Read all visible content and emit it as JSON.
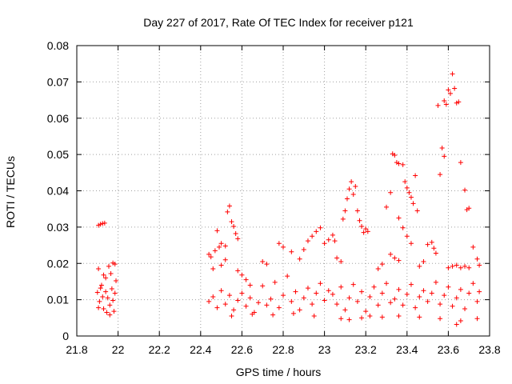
{
  "chart_data": {
    "type": "scatter",
    "title": "Day 227 of 2017, Rate Of TEC Index for receiver p121",
    "xlabel": "GPS time / hours",
    "ylabel": "ROTI / TECUs",
    "xlim": [
      21.8,
      23.8
    ],
    "ylim": [
      0,
      0.08
    ],
    "xticks": [
      21.8,
      22.0,
      22.2,
      22.4,
      22.6,
      22.8,
      23.0,
      23.2,
      23.4,
      23.6,
      23.8
    ],
    "xtick_labels": [
      "21.8",
      "22",
      "22.2",
      "22.4",
      "22.6",
      "22.8",
      "23",
      "23.2",
      "23.4",
      "23.6",
      "23.8"
    ],
    "yticks": [
      0,
      0.01,
      0.02,
      0.03,
      0.04,
      0.05,
      0.06,
      0.07,
      0.08
    ],
    "ytick_labels": [
      "0",
      "0.01",
      "0.02",
      "0.03",
      "0.04",
      "0.05",
      "0.06",
      "0.07",
      "0.08"
    ],
    "grid": true,
    "marker": "+",
    "series": [
      {
        "color": "#ff0000",
        "points": [
          [
            21.905,
            0.0305
          ],
          [
            21.915,
            0.0308
          ],
          [
            21.925,
            0.031
          ],
          [
            21.935,
            0.0311
          ],
          [
            21.905,
            0.0185
          ],
          [
            21.955,
            0.0192
          ],
          [
            21.975,
            0.0201
          ],
          [
            21.985,
            0.0198
          ],
          [
            21.9,
            0.012
          ],
          [
            21.91,
            0.0095
          ],
          [
            21.92,
            0.014
          ],
          [
            21.93,
            0.0075
          ],
          [
            21.94,
            0.016
          ],
          [
            21.95,
            0.0105
          ],
          [
            21.96,
            0.0085
          ],
          [
            21.97,
            0.013
          ],
          [
            21.98,
            0.0068
          ],
          [
            21.99,
            0.0152
          ],
          [
            21.905,
            0.0078
          ],
          [
            21.915,
            0.0132
          ],
          [
            21.925,
            0.0108
          ],
          [
            21.945,
            0.0065
          ],
          [
            21.965,
            0.0172
          ],
          [
            21.975,
            0.0098
          ],
          [
            21.985,
            0.0118
          ],
          [
            21.93,
            0.0168
          ],
          [
            21.96,
            0.0058
          ],
          [
            21.94,
            0.0122
          ],
          [
            22.44,
            0.0225
          ],
          [
            22.45,
            0.0218
          ],
          [
            22.47,
            0.0235
          ],
          [
            22.48,
            0.029
          ],
          [
            22.5,
            0.0255
          ],
          [
            22.52,
            0.0248
          ],
          [
            22.53,
            0.0342
          ],
          [
            22.54,
            0.0358
          ],
          [
            22.55,
            0.0315
          ],
          [
            22.56,
            0.0302
          ],
          [
            22.57,
            0.0282
          ],
          [
            22.58,
            0.0268
          ],
          [
            22.49,
            0.0245
          ],
          [
            22.5,
            0.0195
          ],
          [
            22.52,
            0.021
          ],
          [
            22.46,
            0.0185
          ],
          [
            22.58,
            0.018
          ],
          [
            22.6,
            0.0168
          ],
          [
            22.62,
            0.0155
          ],
          [
            22.64,
            0.014
          ],
          [
            22.44,
            0.0095
          ],
          [
            22.46,
            0.0108
          ],
          [
            22.48,
            0.0078
          ],
          [
            22.5,
            0.0125
          ],
          [
            22.52,
            0.0088
          ],
          [
            22.54,
            0.0112
          ],
          [
            22.56,
            0.0072
          ],
          [
            22.58,
            0.0098
          ],
          [
            22.6,
            0.0118
          ],
          [
            22.62,
            0.0082
          ],
          [
            22.64,
            0.0105
          ],
          [
            22.66,
            0.0065
          ],
          [
            22.68,
            0.0092
          ],
          [
            22.7,
            0.0138
          ],
          [
            22.72,
            0.0085
          ],
          [
            22.74,
            0.0102
          ],
          [
            22.76,
            0.0148
          ],
          [
            22.78,
            0.0078
          ],
          [
            22.8,
            0.0112
          ],
          [
            22.82,
            0.0165
          ],
          [
            22.84,
            0.0095
          ],
          [
            22.86,
            0.0122
          ],
          [
            22.88,
            0.0072
          ],
          [
            22.9,
            0.0105
          ],
          [
            22.92,
            0.0132
          ],
          [
            22.94,
            0.0088
          ],
          [
            22.96,
            0.0118
          ],
          [
            22.98,
            0.0145
          ],
          [
            23.0,
            0.0098
          ],
          [
            23.02,
            0.0125
          ],
          [
            22.55,
            0.0055
          ],
          [
            22.65,
            0.006
          ],
          [
            22.75,
            0.0058
          ],
          [
            22.85,
            0.0062
          ],
          [
            22.95,
            0.0055
          ],
          [
            22.7,
            0.0205
          ],
          [
            22.72,
            0.0198
          ],
          [
            22.78,
            0.0255
          ],
          [
            22.8,
            0.0245
          ],
          [
            22.84,
            0.0232
          ],
          [
            22.88,
            0.0212
          ],
          [
            22.9,
            0.0238
          ],
          [
            22.92,
            0.0262
          ],
          [
            22.94,
            0.0275
          ],
          [
            22.96,
            0.0288
          ],
          [
            22.98,
            0.0298
          ],
          [
            23.0,
            0.0255
          ],
          [
            23.02,
            0.0265
          ],
          [
            23.04,
            0.0278
          ],
          [
            23.05,
            0.0262
          ],
          [
            23.06,
            0.0215
          ],
          [
            23.08,
            0.0205
          ],
          [
            23.09,
            0.0322
          ],
          [
            23.1,
            0.0345
          ],
          [
            23.11,
            0.0378
          ],
          [
            23.12,
            0.0405
          ],
          [
            23.13,
            0.0425
          ],
          [
            23.14,
            0.039
          ],
          [
            23.15,
            0.0412
          ],
          [
            23.16,
            0.0345
          ],
          [
            23.17,
            0.0318
          ],
          [
            23.18,
            0.0302
          ],
          [
            23.19,
            0.0285
          ],
          [
            23.2,
            0.0295
          ],
          [
            23.21,
            0.0288
          ],
          [
            23.04,
            0.0115
          ],
          [
            23.06,
            0.0088
          ],
          [
            23.08,
            0.0135
          ],
          [
            23.1,
            0.0072
          ],
          [
            23.12,
            0.0105
          ],
          [
            23.14,
            0.0142
          ],
          [
            23.16,
            0.0095
          ],
          [
            23.18,
            0.0122
          ],
          [
            23.2,
            0.0068
          ],
          [
            23.22,
            0.0108
          ],
          [
            23.24,
            0.0135
          ],
          [
            23.26,
            0.0085
          ],
          [
            23.28,
            0.0118
          ],
          [
            23.3,
            0.0145
          ],
          [
            23.32,
            0.0092
          ],
          [
            23.08,
            0.0048
          ],
          [
            23.12,
            0.0045
          ],
          [
            23.18,
            0.005
          ],
          [
            23.22,
            0.0055
          ],
          [
            23.28,
            0.0052
          ],
          [
            23.3,
            0.0355
          ],
          [
            23.32,
            0.0395
          ],
          [
            23.33,
            0.0502
          ],
          [
            23.34,
            0.0498
          ],
          [
            23.35,
            0.0478
          ],
          [
            23.36,
            0.0475
          ],
          [
            23.38,
            0.0472
          ],
          [
            23.39,
            0.0425
          ],
          [
            23.4,
            0.0408
          ],
          [
            23.41,
            0.0395
          ],
          [
            23.42,
            0.0382
          ],
          [
            23.43,
            0.0365
          ],
          [
            23.44,
            0.0442
          ],
          [
            23.45,
            0.0345
          ],
          [
            23.36,
            0.0325
          ],
          [
            23.38,
            0.0298
          ],
          [
            23.4,
            0.0275
          ],
          [
            23.42,
            0.0255
          ],
          [
            23.32,
            0.0225
          ],
          [
            23.34,
            0.0215
          ],
          [
            23.26,
            0.0185
          ],
          [
            23.28,
            0.0198
          ],
          [
            23.36,
            0.0208
          ],
          [
            23.46,
            0.0192
          ],
          [
            23.48,
            0.0205
          ],
          [
            23.34,
            0.0102
          ],
          [
            23.36,
            0.0128
          ],
          [
            23.38,
            0.0085
          ],
          [
            23.4,
            0.0115
          ],
          [
            23.42,
            0.0142
          ],
          [
            23.44,
            0.0078
          ],
          [
            23.46,
            0.0108
          ],
          [
            23.48,
            0.0125
          ],
          [
            23.5,
            0.0095
          ],
          [
            23.52,
            0.0118
          ],
          [
            23.54,
            0.0148
          ],
          [
            23.56,
            0.0088
          ],
          [
            23.58,
            0.0112
          ],
          [
            23.6,
            0.0135
          ],
          [
            23.62,
            0.0082
          ],
          [
            23.64,
            0.0105
          ],
          [
            23.66,
            0.0128
          ],
          [
            23.68,
            0.0075
          ],
          [
            23.7,
            0.0118
          ],
          [
            23.72,
            0.0145
          ],
          [
            23.74,
            0.0095
          ],
          [
            23.75,
            0.0122
          ],
          [
            23.36,
            0.0055
          ],
          [
            23.46,
            0.0052
          ],
          [
            23.56,
            0.0048
          ],
          [
            23.64,
            0.0032
          ],
          [
            23.66,
            0.0042
          ],
          [
            23.74,
            0.0048
          ],
          [
            23.5,
            0.0252
          ],
          [
            23.52,
            0.0258
          ],
          [
            23.53,
            0.0242
          ],
          [
            23.54,
            0.0228
          ],
          [
            23.55,
            0.0635
          ],
          [
            23.56,
            0.0445
          ],
          [
            23.57,
            0.0518
          ],
          [
            23.58,
            0.0648
          ],
          [
            23.59,
            0.0638
          ],
          [
            23.6,
            0.0678
          ],
          [
            23.61,
            0.0668
          ],
          [
            23.62,
            0.0722
          ],
          [
            23.63,
            0.0682
          ],
          [
            23.64,
            0.0642
          ],
          [
            23.65,
            0.0645
          ],
          [
            23.66,
            0.0478
          ],
          [
            23.68,
            0.0402
          ],
          [
            23.69,
            0.0348
          ],
          [
            23.7,
            0.0352
          ],
          [
            23.58,
            0.0495
          ],
          [
            23.6,
            0.0188
          ],
          [
            23.62,
            0.0192
          ],
          [
            23.64,
            0.0195
          ],
          [
            23.66,
            0.0188
          ],
          [
            23.68,
            0.0192
          ],
          [
            23.7,
            0.0188
          ],
          [
            23.72,
            0.0245
          ],
          [
            23.74,
            0.0212
          ],
          [
            23.75,
            0.0195
          ]
        ]
      }
    ]
  }
}
